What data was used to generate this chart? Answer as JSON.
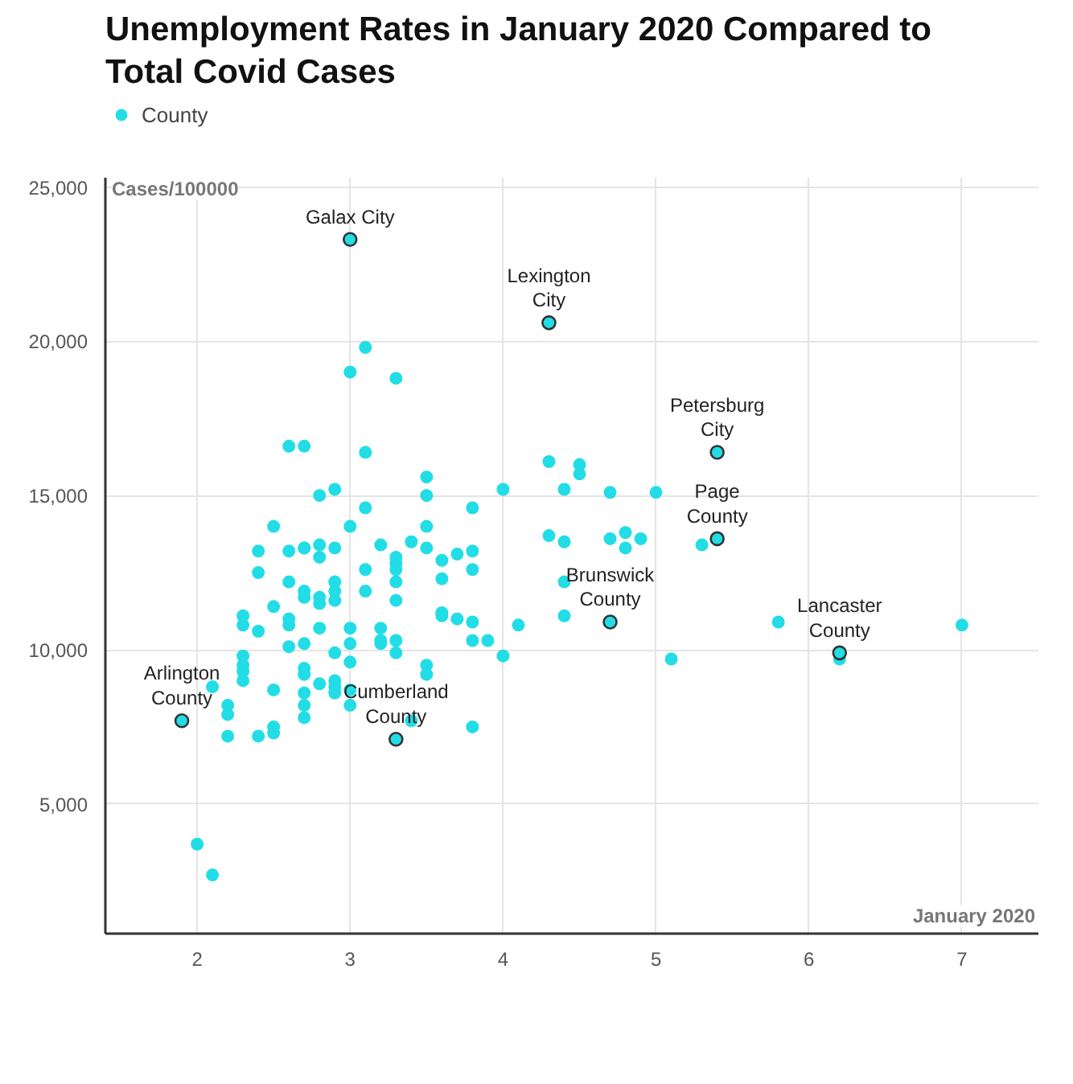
{
  "chart_data": {
    "type": "scatter",
    "title": "Unemployment Rates in January 2020 Compared to Total Covid Cases",
    "xlabel": "January 2020",
    "ylabel": "Cases/100000",
    "xlim": [
      1.4,
      7.5
    ],
    "ylim": [
      800,
      25300
    ],
    "xticks": [
      2,
      3,
      4,
      5,
      6,
      7
    ],
    "yticks": [
      {
        "value": 5000,
        "label": "5,000"
      },
      {
        "value": 10000,
        "label": "10,000"
      },
      {
        "value": 15000,
        "label": "15,000"
      },
      {
        "value": 20000,
        "label": "20,000"
      },
      {
        "value": 25000,
        "label": "25,000"
      }
    ],
    "grid": true,
    "legend": "top left",
    "marker": "circle",
    "series": [
      {
        "name": "County",
        "color": "#22dde6",
        "x": [
          1.9,
          2.0,
          2.1,
          2.1,
          2.2,
          2.2,
          2.2,
          2.3,
          2.3,
          2.3,
          2.3,
          2.3,
          2.3,
          2.4,
          2.4,
          2.4,
          2.4,
          2.5,
          2.5,
          2.5,
          2.5,
          2.5,
          2.6,
          2.6,
          2.6,
          2.6,
          2.6,
          2.6,
          2.7,
          2.7,
          2.7,
          2.7,
          2.7,
          2.7,
          2.7,
          2.7,
          2.7,
          2.7,
          2.7,
          2.8,
          2.8,
          2.8,
          2.8,
          2.8,
          2.8,
          2.8,
          2.9,
          2.9,
          2.9,
          2.9,
          2.9,
          2.9,
          2.9,
          2.9,
          2.9,
          3.0,
          3.0,
          3.0,
          3.0,
          3.0,
          3.0,
          3.0,
          3.0,
          3.1,
          3.1,
          3.1,
          3.1,
          3.1,
          3.2,
          3.2,
          3.2,
          3.2,
          3.3,
          3.3,
          3.3,
          3.3,
          3.3,
          3.3,
          3.3,
          3.3,
          3.3,
          3.4,
          3.4,
          3.5,
          3.5,
          3.5,
          3.5,
          3.5,
          3.5,
          3.6,
          3.6,
          3.6,
          3.6,
          3.7,
          3.7,
          3.8,
          3.8,
          3.8,
          3.8,
          3.8,
          3.8,
          3.9,
          4.0,
          4.0,
          4.1,
          4.3,
          4.3,
          4.3,
          4.4,
          4.4,
          4.4,
          4.4,
          4.5,
          4.5,
          4.7,
          4.7,
          4.7,
          4.8,
          4.8,
          4.9,
          5.0,
          5.1,
          5.3,
          5.4,
          5.4,
          5.8,
          6.2,
          6.2,
          7.0
        ],
        "values": [
          7700,
          3700,
          2700,
          8800,
          7200,
          7900,
          8200,
          11100,
          10800,
          9800,
          9500,
          9300,
          9000,
          13200,
          12500,
          10600,
          7200,
          14000,
          11400,
          8700,
          7500,
          7300,
          16600,
          12200,
          11000,
          10800,
          10100,
          13200,
          16600,
          13300,
          11900,
          11700,
          10200,
          9400,
          9200,
          8600,
          8200,
          7800,
          13300,
          15000,
          13400,
          13000,
          11700,
          11500,
          10700,
          8900,
          15200,
          12200,
          11900,
          11600,
          9900,
          9000,
          8800,
          8600,
          13300,
          23300,
          19000,
          14000,
          10700,
          10200,
          9600,
          8700,
          8200,
          19800,
          16400,
          14600,
          12600,
          11900,
          13400,
          10700,
          10300,
          10200,
          18800,
          13000,
          12800,
          12600,
          12200,
          11600,
          10300,
          9900,
          7100,
          13500,
          7700,
          15600,
          15000,
          14000,
          9500,
          9200,
          13300,
          12900,
          12300,
          11200,
          11100,
          13100,
          11000,
          14600,
          13200,
          12600,
          10900,
          10300,
          7500,
          10300,
          15200,
          9800,
          10800,
          20600,
          16100,
          13700,
          15200,
          13500,
          12200,
          11100,
          16000,
          15700,
          15100,
          13600,
          10900,
          13800,
          13300,
          13600,
          15100,
          9700,
          13400,
          16400,
          13600,
          10900,
          9900,
          9700,
          10800
        ]
      }
    ],
    "annotations": [
      {
        "text": "Galax City",
        "x": 3.0,
        "y": 23300
      },
      {
        "text": "Lexington\nCity",
        "x": 4.3,
        "y": 20600
      },
      {
        "text": "Petersburg\nCity",
        "x": 5.4,
        "y": 16400
      },
      {
        "text": "Page\nCounty",
        "x": 5.4,
        "y": 13600
      },
      {
        "text": "Brunswick\nCounty",
        "x": 4.7,
        "y": 10900
      },
      {
        "text": "Lancaster\nCounty",
        "x": 6.2,
        "y": 9900
      },
      {
        "text": "Arlington\nCounty",
        "x": 1.9,
        "y": 7700
      },
      {
        "text": "Cumberland\nCounty",
        "x": 3.3,
        "y": 7100
      }
    ]
  }
}
